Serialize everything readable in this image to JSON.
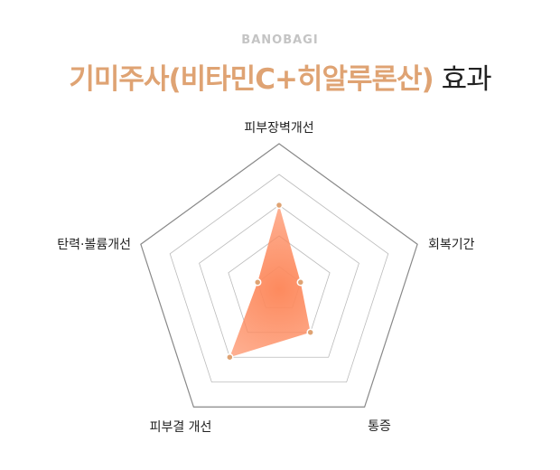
{
  "brand": "BANOBAGI",
  "title": {
    "highlight": "기미주사(비타민C+히알루론산)",
    "rest": "효과"
  },
  "chart_data": {
    "type": "radar",
    "axes": [
      "피부장벽개선",
      "회복기간",
      "통증",
      "피부결 개선",
      "탄력·볼륨개선"
    ],
    "values": [
      3,
      1,
      2,
      3,
      1
    ],
    "rings": [
      1,
      2,
      3,
      4,
      5
    ],
    "range": [
      0,
      5
    ],
    "grid": true,
    "colors": {
      "fill": "#fd8a5e",
      "point": "#dfa373",
      "grid": "#bbbbbb",
      "outer": "#888888"
    }
  }
}
